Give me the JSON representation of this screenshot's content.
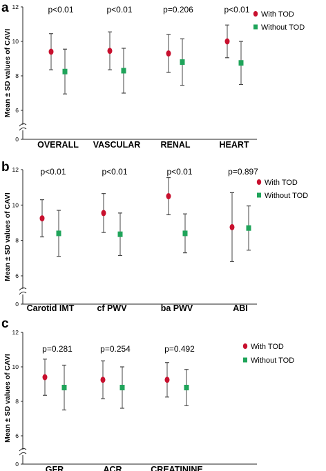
{
  "chart_data": [
    {
      "panel": "a",
      "type": "scatter",
      "ylabel": "Mean ± SD values of CAVI",
      "ylim": [
        0,
        12
      ],
      "yticks": [
        0,
        6,
        8,
        10,
        12
      ],
      "axis_break": true,
      "legend_position": "top-right",
      "categories": [
        "OVERALL",
        "VASCULAR",
        "RENAL",
        "HEART"
      ],
      "p_values": [
        "p<0.01",
        "p<0.01",
        "p=0.206",
        "p<0.01"
      ],
      "series": [
        {
          "name": "With TOD",
          "color": "#c8102e",
          "marker": "circle",
          "mean": [
            9.4,
            9.45,
            9.3,
            10.0
          ],
          "sd": [
            1.05,
            1.1,
            1.1,
            0.95
          ]
        },
        {
          "name": "Without TOD",
          "color": "#1fa45a",
          "marker": "square",
          "mean": [
            8.25,
            8.3,
            8.8,
            8.75
          ],
          "sd": [
            1.3,
            1.3,
            1.35,
            1.25
          ]
        }
      ]
    },
    {
      "panel": "b",
      "type": "scatter",
      "ylabel": "Mean ± SD values of CAVI",
      "ylim": [
        0,
        12
      ],
      "yticks": [
        0,
        6,
        8,
        10,
        12
      ],
      "axis_break": true,
      "legend_position": "top-right",
      "categories": [
        "Carotid IMT",
        "cf PWV",
        "ba PWV",
        "ABI"
      ],
      "p_values": [
        "p<0.01",
        "p<0.01",
        "p<0.01",
        "p=0.897"
      ],
      "series": [
        {
          "name": "With TOD",
          "color": "#c8102e",
          "marker": "circle",
          "mean": [
            9.25,
            9.55,
            10.5,
            8.75
          ],
          "sd": [
            1.05,
            1.1,
            1.05,
            1.95
          ]
        },
        {
          "name": "Without TOD",
          "color": "#1fa45a",
          "marker": "square",
          "mean": [
            8.4,
            8.35,
            8.4,
            8.7
          ],
          "sd": [
            1.3,
            1.2,
            1.1,
            1.25
          ]
        }
      ]
    },
    {
      "panel": "c",
      "type": "scatter",
      "ylabel": "Mean ± SD values of CAVI",
      "ylim": [
        0,
        12
      ],
      "yticks": [
        0,
        6,
        8,
        10,
        12
      ],
      "axis_break": true,
      "legend_position": "top-right",
      "categories": [
        "GFR",
        "ACR",
        "CREATININE"
      ],
      "p_values": [
        "p=0.281",
        "p=0.254",
        "p=0.492"
      ],
      "series": [
        {
          "name": "With TOD",
          "color": "#c8102e",
          "marker": "circle",
          "mean": [
            9.4,
            9.25,
            9.25
          ],
          "sd": [
            1.05,
            1.1,
            1.0
          ]
        },
        {
          "name": "Without TOD",
          "color": "#1fa45a",
          "marker": "square",
          "mean": [
            8.8,
            8.8,
            8.8
          ],
          "sd": [
            1.3,
            1.2,
            1.05
          ]
        }
      ]
    }
  ]
}
